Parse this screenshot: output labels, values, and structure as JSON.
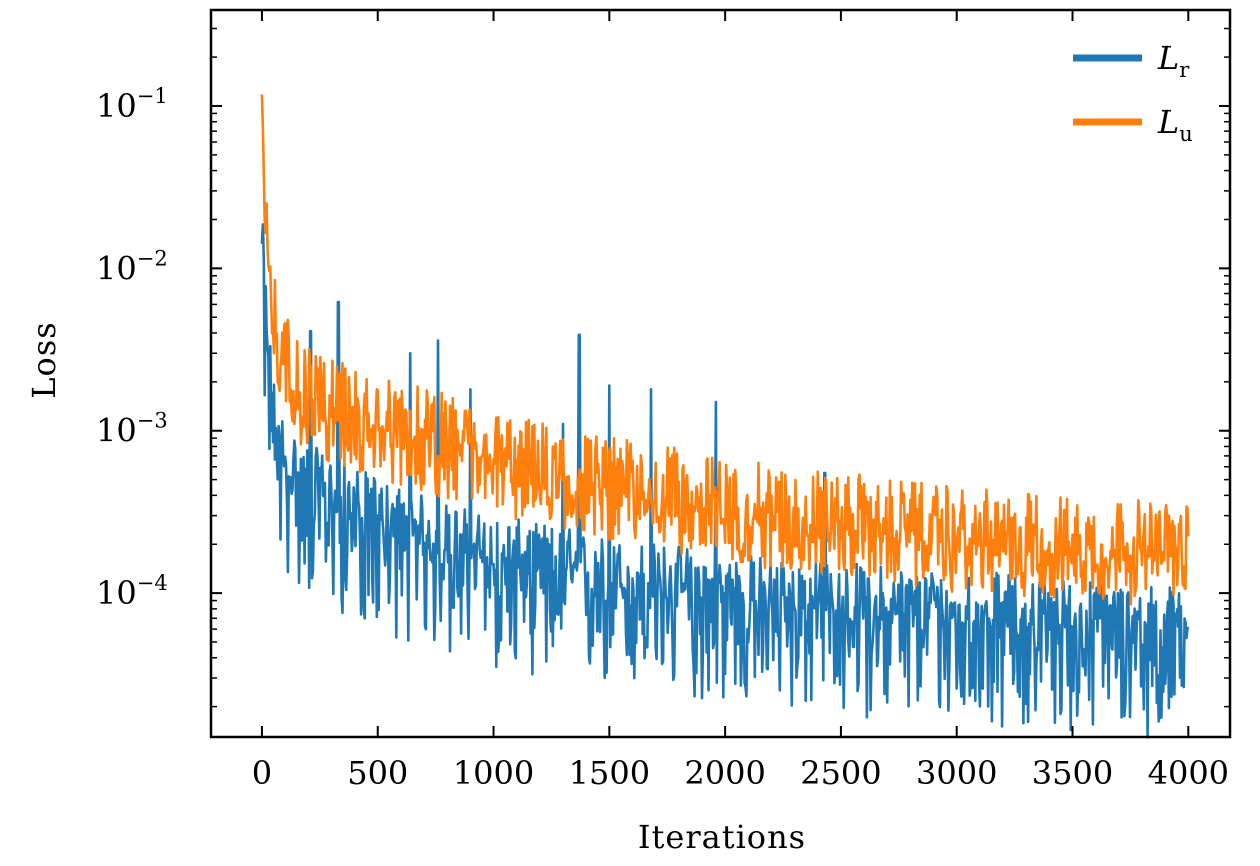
{
  "chart_data": {
    "type": "line",
    "xlabel": "Iterations",
    "ylabel": "Loss",
    "yscale": "log",
    "xlim": [
      -220,
      4180
    ],
    "ylim": [
      1.3e-05,
      0.39
    ],
    "xticks": [
      0,
      500,
      1000,
      1500,
      2000,
      2500,
      3000,
      3500,
      4000
    ],
    "xtick_labels": [
      "0",
      "500",
      "1000",
      "1500",
      "2000",
      "2500",
      "3000",
      "3500",
      "4000"
    ],
    "yticks": [
      0.1,
      0.01,
      0.001,
      0.0001
    ],
    "ytick_labels": [
      {
        "base": "10",
        "exp": "−1"
      },
      {
        "base": "10",
        "exp": "−2"
      },
      {
        "base": "10",
        "exp": "−3"
      },
      {
        "base": "10",
        "exp": "−4"
      }
    ],
    "legend_position": "top-right",
    "grid": false,
    "series": [
      {
        "name": "r",
        "legend_symbol": "L",
        "legend_sub": "r",
        "color": "#1f77b4",
        "trend_x": [
          0,
          20,
          50,
          100,
          200,
          300,
          400,
          500,
          700,
          1000,
          1300,
          1500,
          1800,
          2000,
          2500,
          3000,
          3500,
          4000
        ],
        "trend_y": [
          0.012,
          0.0035,
          0.0011,
          0.00055,
          0.00042,
          0.00035,
          0.0003,
          0.00026,
          0.0002,
          0.00015,
          0.00013,
          0.00011,
          0.0001,
          9e-05,
          7.8e-05,
          7e-05,
          6.2e-05,
          5.5e-05
        ],
        "noise_down": 0.65,
        "noise_up": 0.3,
        "spikes": [
          {
            "x": 210,
            "y": 0.0041
          },
          {
            "x": 330,
            "y": 0.0062
          },
          {
            "x": 640,
            "y": 0.003
          },
          {
            "x": 760,
            "y": 0.0036
          },
          {
            "x": 900,
            "y": 0.0018
          },
          {
            "x": 1300,
            "y": 0.0011
          },
          {
            "x": 1370,
            "y": 0.0039
          },
          {
            "x": 1500,
            "y": 0.0019
          },
          {
            "x": 1680,
            "y": 0.0018
          },
          {
            "x": 1960,
            "y": 0.0015
          },
          {
            "x": 2430,
            "y": 0.00055
          }
        ]
      },
      {
        "name": "u",
        "legend_symbol": "L",
        "legend_sub": "u",
        "color": "#ff7f0e",
        "trend_x": [
          0,
          10,
          40,
          80,
          150,
          250,
          400,
          600,
          800,
          1000,
          1300,
          1500,
          1800,
          2000,
          2500,
          3000,
          3500,
          4000
        ],
        "trend_y": [
          0.12,
          0.03,
          0.006,
          0.0028,
          0.0016,
          0.0013,
          0.0011,
          0.0009,
          0.00075,
          0.0006,
          0.00048,
          0.00042,
          0.00035,
          0.0003,
          0.00025,
          0.0002,
          0.00018,
          0.00016
        ],
        "noise_down": 0.3,
        "noise_up": 0.35,
        "spikes": []
      }
    ]
  }
}
